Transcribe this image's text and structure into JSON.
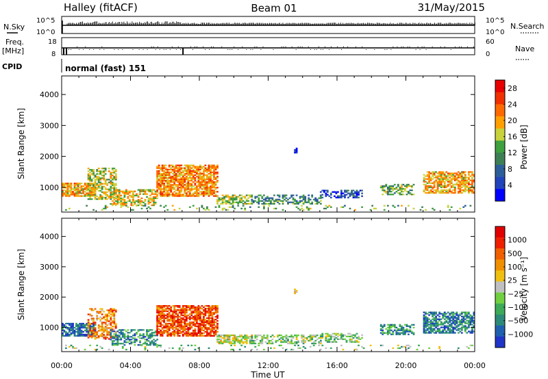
{
  "header": {
    "station": "Halley (fitACF)",
    "beam": "Beam 01",
    "date": "31/May/2015"
  },
  "params": {
    "nsky_label": "N.Sky",
    "nsearch_label": "N.Search",
    "freq_label": "Freq.",
    "freq_unit": "[MHz]",
    "nave_label": "Nave",
    "cpid_label": "CPID",
    "cpid_value": "normal (fast) 151",
    "noise_ticks": [
      "10^5",
      "10^0"
    ],
    "freq_ticks": [
      "18",
      "8"
    ],
    "nave_ticks": [
      "60",
      "0"
    ]
  },
  "colors": {
    "power": [
      "#0000ff",
      "#2244bb",
      "#2d5e9a",
      "#3f7f55",
      "#3fa03f",
      "#c8d23c",
      "#ffa000",
      "#ff6a00",
      "#f03000",
      "#e80000"
    ],
    "velocity": [
      "#2035c8",
      "#2060b0",
      "#2c8a78",
      "#3daa58",
      "#70d040",
      "#c0c0c0",
      "#f0c010",
      "#f09000",
      "#f06000",
      "#ee2000",
      "#e00000"
    ]
  },
  "chart_data": [
    {
      "type": "heatmap",
      "name": "power",
      "ylabel": "Slant Range [km]",
      "ylim": [
        200,
        4600
      ],
      "yticks": [
        "1000",
        "2000",
        "3000",
        "4000"
      ],
      "xlim_hours": [
        0,
        24
      ],
      "xticks": [
        "00:00",
        "04:00",
        "08:00",
        "12:00",
        "16:00",
        "20:00",
        "00:00"
      ],
      "colorbar_label": "Power [dB]",
      "colorbar_ticks": [
        "4",
        "8",
        "12",
        "16",
        "20",
        "24",
        "28"
      ],
      "colorbar_range": [
        0,
        30
      ],
      "patches": [
        {
          "t": [
            0.0,
            2.0
          ],
          "r": [
            700,
            1150
          ],
          "level": 0.65,
          "density": 0.8
        },
        {
          "t": [
            1.5,
            3.2
          ],
          "r": [
            600,
            1600
          ],
          "level": 0.55,
          "density": 0.55
        },
        {
          "t": [
            2.8,
            5.5
          ],
          "r": [
            400,
            900
          ],
          "level": 0.6,
          "density": 0.55
        },
        {
          "t": [
            5.5,
            9.0
          ],
          "r": [
            700,
            1700
          ],
          "level": 0.7,
          "density": 0.75
        },
        {
          "t": [
            9.0,
            11.0
          ],
          "r": [
            450,
            750
          ],
          "level": 0.5,
          "density": 0.65
        },
        {
          "t": [
            11.0,
            15.0
          ],
          "r": [
            450,
            750
          ],
          "level": 0.35,
          "density": 0.5
        },
        {
          "t": [
            15.0,
            17.5
          ],
          "r": [
            650,
            900
          ],
          "level": 0.2,
          "density": 0.6
        },
        {
          "t": [
            18.5,
            20.5
          ],
          "r": [
            750,
            1100
          ],
          "level": 0.45,
          "density": 0.6
        },
        {
          "t": [
            21.0,
            24.0
          ],
          "r": [
            800,
            1500
          ],
          "level": 0.65,
          "density": 0.7
        },
        {
          "t": [
            13.5,
            13.7
          ],
          "r": [
            2100,
            2250
          ],
          "level": 0.15,
          "density": 0.9
        },
        {
          "t": [
            0.0,
            24.0
          ],
          "r": [
            250,
            420
          ],
          "level": 0.45,
          "density": 0.12
        }
      ]
    },
    {
      "type": "heatmap",
      "name": "velocity",
      "ylabel": "Slant Range [km]",
      "ylim": [
        200,
        4600
      ],
      "yticks": [
        "1000",
        "2000",
        "3000",
        "4000"
      ],
      "xlim_hours": [
        0,
        24
      ],
      "xticks": [
        "00:00",
        "04:00",
        "08:00",
        "12:00",
        "16:00",
        "20:00",
        "00:00"
      ],
      "xlabel": "Time UT",
      "colorbar_label": "Velocity [m s⁻¹]",
      "colorbar_ticks": [
        "1000",
        "500",
        "100",
        "25",
        "−25",
        "−100",
        "−500",
        "−1000"
      ],
      "colorbar_range": [
        -1000,
        1000
      ],
      "patches": [
        {
          "t": [
            0.0,
            2.0
          ],
          "r": [
            700,
            1150
          ],
          "level": 0.15,
          "density": 0.8
        },
        {
          "t": [
            1.5,
            3.2
          ],
          "r": [
            600,
            1600
          ],
          "level": 0.7,
          "density": 0.5
        },
        {
          "t": [
            2.8,
            5.5
          ],
          "r": [
            400,
            900
          ],
          "level": 0.25,
          "density": 0.5
        },
        {
          "t": [
            5.5,
            9.0
          ],
          "r": [
            700,
            1700
          ],
          "level": 0.8,
          "density": 0.75
        },
        {
          "t": [
            9.0,
            11.0
          ],
          "r": [
            450,
            750
          ],
          "level": 0.5,
          "density": 0.65
        },
        {
          "t": [
            11.0,
            15.0
          ],
          "r": [
            450,
            750
          ],
          "level": 0.42,
          "density": 0.5
        },
        {
          "t": [
            15.0,
            17.5
          ],
          "r": [
            500,
            800
          ],
          "level": 0.4,
          "density": 0.5
        },
        {
          "t": [
            18.5,
            20.5
          ],
          "r": [
            750,
            1100
          ],
          "level": 0.25,
          "density": 0.6
        },
        {
          "t": [
            21.0,
            24.0
          ],
          "r": [
            800,
            1500
          ],
          "level": 0.2,
          "density": 0.7
        },
        {
          "t": [
            13.5,
            13.7
          ],
          "r": [
            2100,
            2250
          ],
          "level": 0.5,
          "density": 0.9
        },
        {
          "t": [
            0.0,
            24.0
          ],
          "r": [
            250,
            420
          ],
          "level": 0.4,
          "density": 0.1
        }
      ]
    }
  ]
}
